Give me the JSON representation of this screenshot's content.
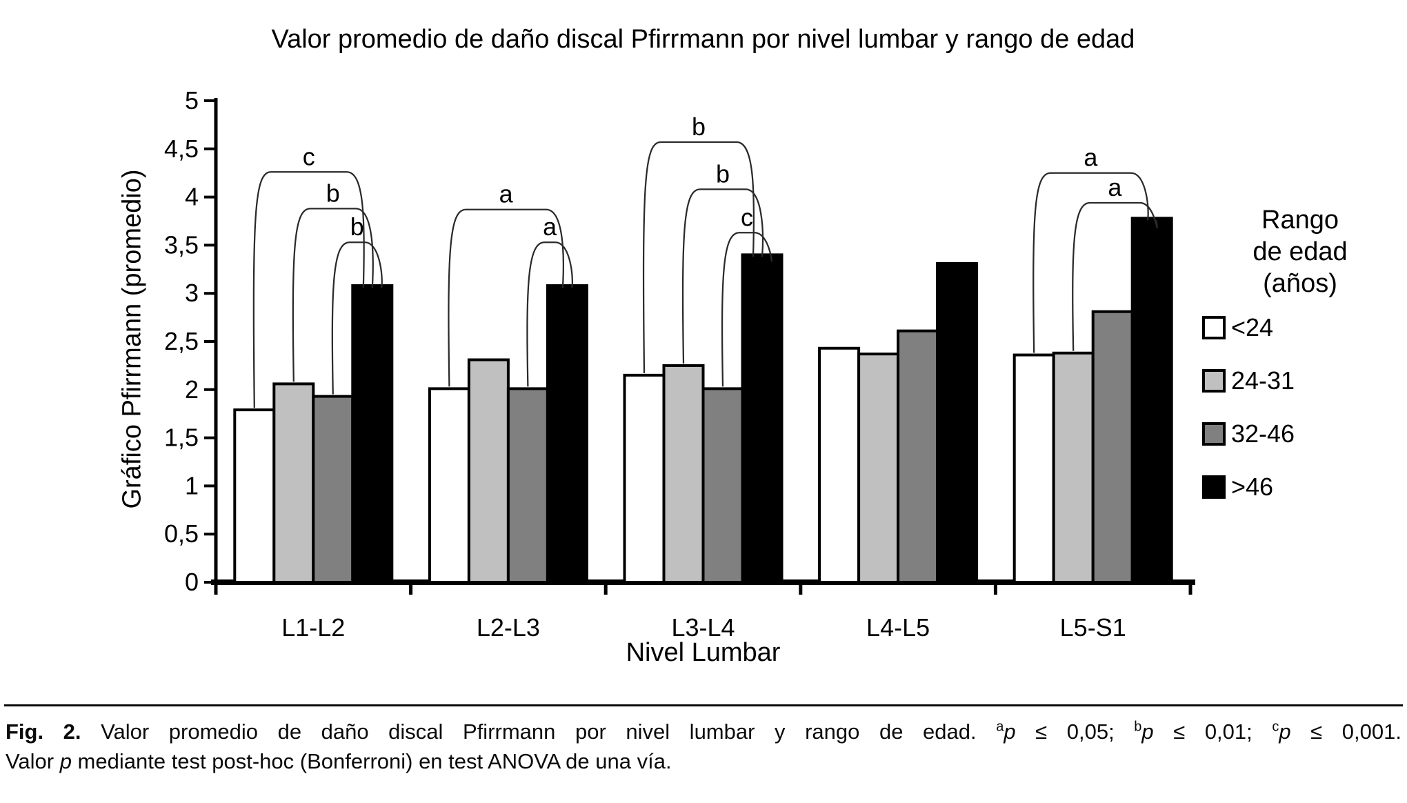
{
  "chart_data": {
    "type": "bar",
    "title": "Valor promedio de daño discal Pfirrmann por nivel lumbar y rango de edad",
    "xlabel": "Nivel Lumbar",
    "ylabel": "Gráfico Pfirrmann (promedio)",
    "ylim": [
      0,
      5
    ],
    "ytick_labels": [
      "0",
      "0,5",
      "1",
      "1,5",
      "2",
      "2,5",
      "3",
      "3,5",
      "4",
      "4,5",
      "5"
    ],
    "grid": false,
    "legend_position": "right",
    "bar_outline_color": "#000000",
    "categories": [
      "L1-L2",
      "L2-L3",
      "L3-L4",
      "L4-L5",
      "L5-S1"
    ],
    "series": [
      {
        "name": "<24",
        "color": "#ffffff",
        "values": [
          1.79,
          2.01,
          2.15,
          2.43,
          2.36
        ]
      },
      {
        "name": "24-31",
        "color": "#c0c0c0",
        "values": [
          2.06,
          2.31,
          2.25,
          2.37,
          2.38
        ]
      },
      {
        "name": "32-46",
        "color": "#808080",
        "values": [
          1.93,
          2.01,
          2.01,
          2.61,
          2.81
        ]
      },
      {
        "name": ">46",
        "color": "#000000",
        "values": [
          3.08,
          3.08,
          3.4,
          3.31,
          3.78
        ]
      }
    ],
    "significance_brackets": [
      {
        "category": "L1-L2",
        "from_series": "<24",
        "to_series": ">46",
        "label": "c",
        "height": 4.26
      },
      {
        "category": "L1-L2",
        "from_series": "24-31",
        "to_series": ">46",
        "label": "b",
        "height": 3.88
      },
      {
        "category": "L1-L2",
        "from_series": "32-46",
        "to_series": ">46",
        "label": "b",
        "height": 3.53
      },
      {
        "category": "L2-L3",
        "from_series": "<24",
        "to_series": ">46",
        "label": "a",
        "height": 3.87
      },
      {
        "category": "L2-L3",
        "from_series": "32-46",
        "to_series": ">46",
        "label": "a",
        "height": 3.53
      },
      {
        "category": "L3-L4",
        "from_series": "<24",
        "to_series": ">46",
        "label": "b",
        "height": 4.57
      },
      {
        "category": "L3-L4",
        "from_series": "24-31",
        "to_series": ">46",
        "label": "b",
        "height": 4.08
      },
      {
        "category": "L3-L4",
        "from_series": "32-46",
        "to_series": ">46",
        "label": "c",
        "height": 3.63
      },
      {
        "category": "L5-S1",
        "from_series": "<24",
        "to_series": ">46",
        "label": "a",
        "height": 4.25
      },
      {
        "category": "L5-S1",
        "from_series": "24-31",
        "to_series": ">46",
        "label": "a",
        "height": 3.94
      }
    ],
    "legend": {
      "title_lines": [
        "Rango",
        "de edad",
        "(años)"
      ]
    }
  },
  "caption": {
    "fig_label": "Fig. 2.",
    "body": " Valor promedio de daño discal Pfirrmann por nivel lumbar y rango de edad. ",
    "sig": [
      {
        "sup": "a",
        "p": "p",
        "rest": " ≤ 0,05; "
      },
      {
        "sup": "b",
        "p": "p",
        "rest": " ≤ 0,01; "
      },
      {
        "sup": "c",
        "p": "p",
        "rest": " ≤ 0,001."
      }
    ],
    "line2_pre": "Valor ",
    "line2_p": "p",
    "line2_post": " mediante test post-hoc (Bonferroni) en test ANOVA de una vía."
  }
}
